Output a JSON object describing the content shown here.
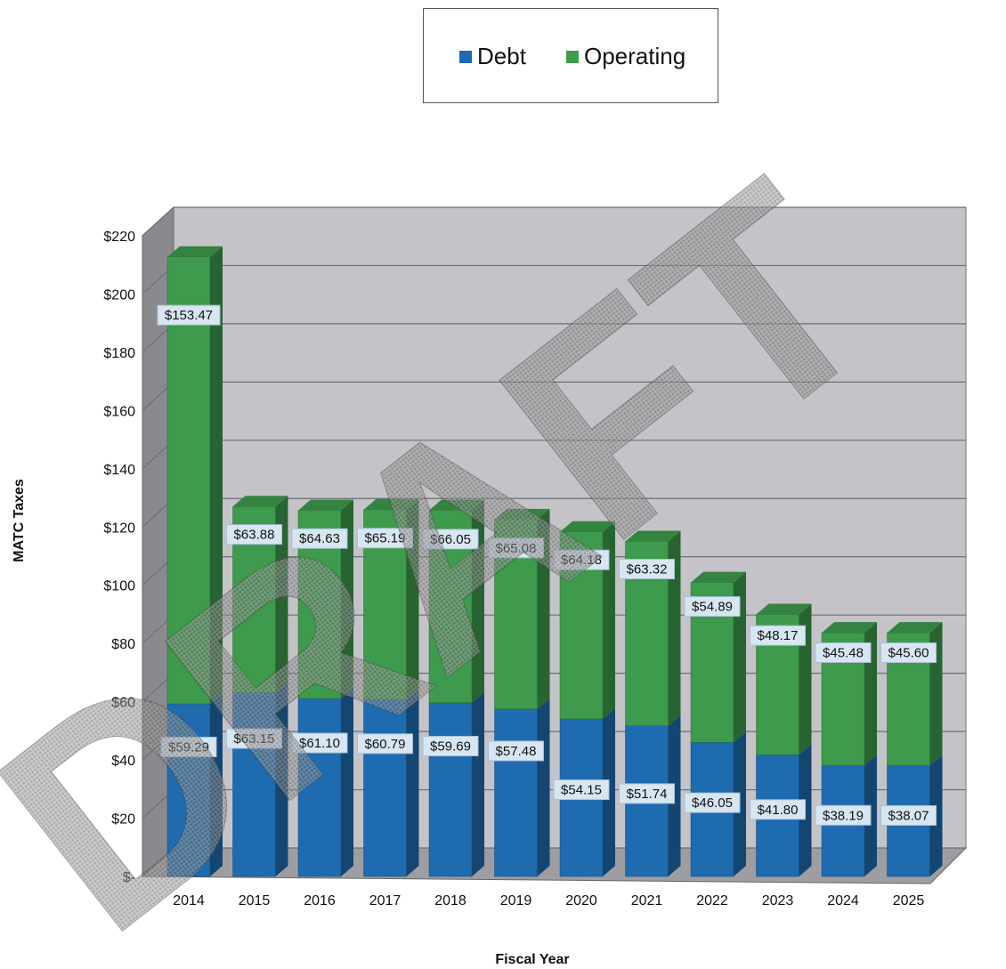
{
  "chart_data": {
    "type": "bar",
    "stacked": true,
    "categories": [
      "2014",
      "2015",
      "2016",
      "2017",
      "2018",
      "2019",
      "2020",
      "2021",
      "2022",
      "2023",
      "2024",
      "2025"
    ],
    "series": [
      {
        "name": "Debt",
        "color": "#1f6bb0",
        "values": [
          59.29,
          63.15,
          61.1,
          60.79,
          59.69,
          57.48,
          54.15,
          51.74,
          46.05,
          41.8,
          38.19,
          38.07
        ],
        "labels": [
          "$59.29",
          "$63.15",
          "$61.10",
          "$60.79",
          "$59.69",
          "$57.48",
          "$54.15",
          "$51.74",
          "$46.05",
          "$41.80",
          "$38.19",
          "$38.07"
        ]
      },
      {
        "name": "Operating",
        "color": "#3e9a4c",
        "values": [
          153.47,
          63.88,
          64.63,
          65.19,
          66.05,
          65.08,
          64.18,
          63.32,
          54.89,
          48.17,
          45.48,
          45.6
        ],
        "labels": [
          "$153.47",
          "$63.88",
          "$64.63",
          "$65.19",
          "$66.05",
          "$65.08",
          "$64.18",
          "$63.32",
          "$54.89",
          "$48.17",
          "$45.48",
          "$45.60"
        ]
      }
    ],
    "ylabel": "MATC Taxes",
    "xlabel": "Fiscal Year",
    "ylim": [
      0,
      220
    ],
    "yticks": [
      "$-",
      "$20",
      "$40",
      "$60",
      "$80",
      "$100",
      "$120",
      "$140",
      "$160",
      "$180",
      "$200",
      "$220"
    ],
    "legend_position": "top-center",
    "grid": true,
    "watermark": "DRAFT"
  }
}
